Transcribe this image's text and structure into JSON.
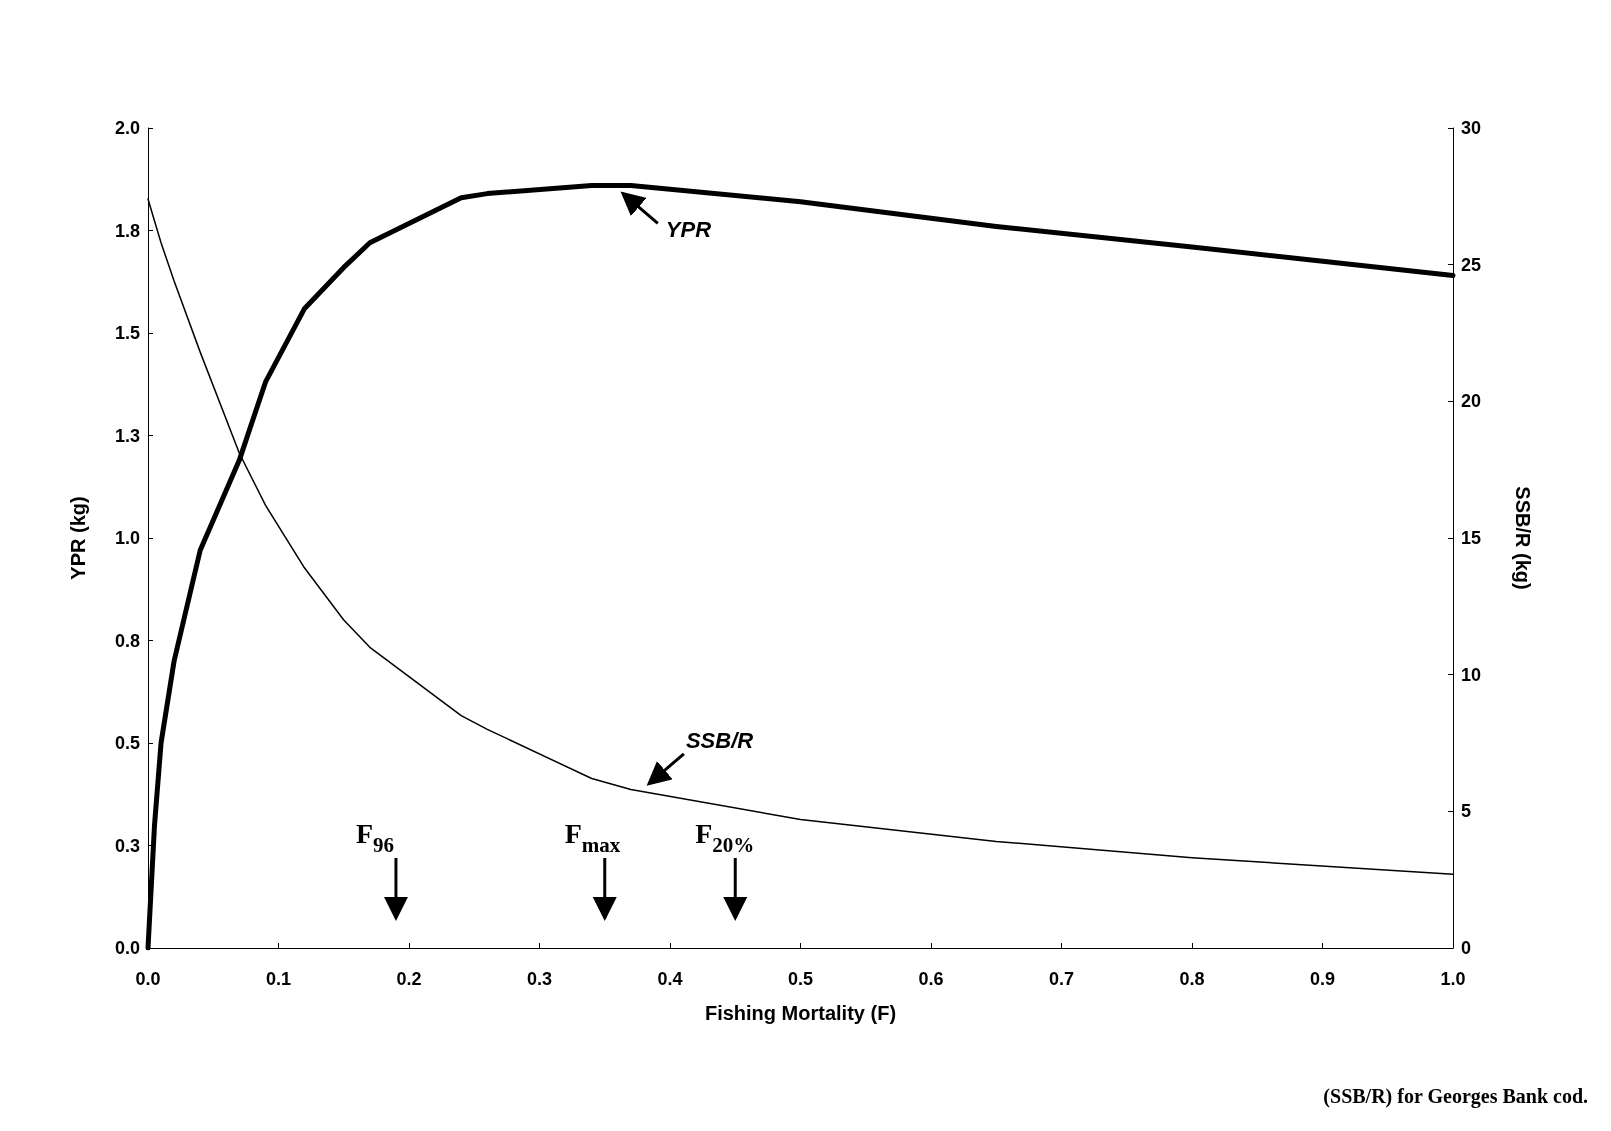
{
  "chart_data": {
    "type": "line",
    "xlabel": "Fishing Mortality (F)",
    "ylabel": "YPR (kg)",
    "y2label": "SSB/R (kg)",
    "x": [
      0,
      0.005,
      0.01,
      0.02,
      0.04,
      0.07,
      0.09,
      0.12,
      0.15,
      0.17,
      0.24,
      0.26,
      0.34,
      0.37,
      0.5,
      0.65,
      0.8,
      1.0
    ],
    "series": [
      {
        "name": "YPR",
        "color": "#000000",
        "values": [
          0,
          0.3,
          0.5,
          0.7,
          0.97,
          1.19,
          1.38,
          1.56,
          1.66,
          1.72,
          1.83,
          1.84,
          1.86,
          1.86,
          1.82,
          1.76,
          1.71,
          1.64
        ]
      },
      {
        "name": "SSB/R",
        "color": "#000000",
        "axis": "y2",
        "values": [
          27.4,
          26.6,
          25.8,
          24.4,
          21.8,
          18.1,
          16.2,
          13.9,
          12.0,
          11.0,
          8.5,
          8.0,
          6.2,
          5.8,
          4.7,
          3.9,
          3.3,
          2.7
        ]
      }
    ],
    "xlim": [
      0,
      1
    ],
    "xticks": [
      {
        "value": 0,
        "label": "0.0"
      },
      {
        "value": 0.1,
        "label": "0.1"
      },
      {
        "value": 0.2,
        "label": "0.2"
      },
      {
        "value": 0.3,
        "label": "0.3"
      },
      {
        "value": 0.4,
        "label": "0.4"
      },
      {
        "value": 0.5,
        "label": "0.5"
      },
      {
        "value": 0.6,
        "label": "0.6"
      },
      {
        "value": 0.7,
        "label": "0.7"
      },
      {
        "value": 0.8,
        "label": "0.8"
      },
      {
        "value": 0.9,
        "label": "0.9"
      },
      {
        "value": 1.0,
        "label": "1.0"
      }
    ],
    "ylim": [
      0,
      2
    ],
    "yticks": [
      {
        "value": 0,
        "label": "0.0"
      },
      {
        "value": 0.25,
        "label": "0.3"
      },
      {
        "value": 0.5,
        "label": "0.5"
      },
      {
        "value": 0.75,
        "label": "0.8"
      },
      {
        "value": 1.0,
        "label": "1.0"
      },
      {
        "value": 1.25,
        "label": "1.3"
      },
      {
        "value": 1.5,
        "label": "1.5"
      },
      {
        "value": 1.75,
        "label": "1.8"
      },
      {
        "value": 2.0,
        "label": "2.0"
      }
    ],
    "y2lim": [
      0,
      30
    ],
    "y2ticks": [
      0,
      5,
      10,
      15,
      20,
      25,
      30
    ],
    "legend": false,
    "grid": false,
    "marker": "none",
    "line_style": "solid",
    "ref_lines": [
      {
        "axis": "x",
        "value": 0.19,
        "label": "F$_{96}$"
      },
      {
        "axis": "x",
        "value": 0.35,
        "label": "F$_{max}$"
      },
      {
        "axis": "x",
        "value": 0.45,
        "label": "F$_{20%}$"
      }
    ],
    "annotations": [
      "(SSB/R) for Georges Bank cod."
    ]
  }
}
